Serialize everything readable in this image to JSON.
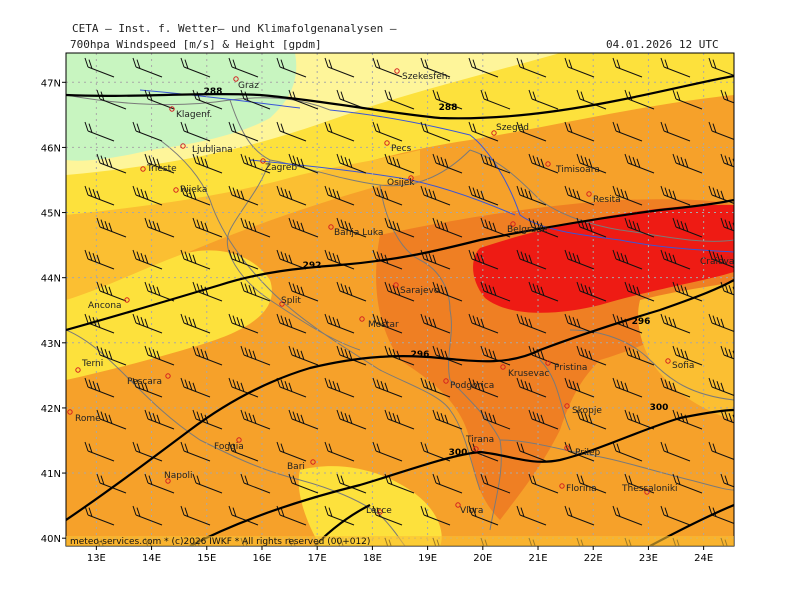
{
  "header": {
    "institute": "CETA – Inst. f. Wetter– und Klimafolgenanalysen –",
    "parameter": "700hpa Windspeed [m/s] & Height [gpdm]",
    "date": "04.01.2026 12 UTC"
  },
  "footer": {
    "credit": "meteo-services.com * (c)2026 IWKF * All rights reserved (00+012)"
  },
  "axes": {
    "lon_labels": [
      "13E",
      "14E",
      "15E",
      "16E",
      "17E",
      "18E",
      "19E",
      "20E",
      "21E",
      "22E",
      "23E",
      "24E"
    ],
    "lat_labels": [
      "47N",
      "46N",
      "45N",
      "44N",
      "43N",
      "42N",
      "41N",
      "40N"
    ]
  },
  "contour_labels": [
    "288",
    "288",
    "292",
    "296",
    "296",
    "300",
    "300"
  ],
  "cities": [
    {
      "name": "Graz"
    },
    {
      "name": "Szekesfeh."
    },
    {
      "name": "Klagenf."
    },
    {
      "name": "Szeged"
    },
    {
      "name": "Ljubljana"
    },
    {
      "name": "Pecs"
    },
    {
      "name": "Trieste"
    },
    {
      "name": "Zagreb"
    },
    {
      "name": "Osijek"
    },
    {
      "name": "Timisoara"
    },
    {
      "name": "Rijeka"
    },
    {
      "name": "Resita"
    },
    {
      "name": "Banja Luka"
    },
    {
      "name": "Belgrade"
    },
    {
      "name": "Craiova"
    },
    {
      "name": "Sarajevo"
    },
    {
      "name": "Ancona"
    },
    {
      "name": "Split"
    },
    {
      "name": "Mostar"
    },
    {
      "name": "Terni"
    },
    {
      "name": "Pristina"
    },
    {
      "name": "Sofia"
    },
    {
      "name": "Pescara"
    },
    {
      "name": "Podgorica"
    },
    {
      "name": "Krusevac"
    },
    {
      "name": "Rome"
    },
    {
      "name": "Skopje"
    },
    {
      "name": "Tirana"
    },
    {
      "name": "Foggia"
    },
    {
      "name": "Bari"
    },
    {
      "name": "Prilep"
    },
    {
      "name": "Napoli"
    },
    {
      "name": "Florina"
    },
    {
      "name": "Thessaloniki"
    },
    {
      "name": "Lecce"
    },
    {
      "name": "Vlora"
    }
  ],
  "colors": {
    "calm": "#c8f5c0",
    "pale": "#fef59a",
    "yellow": "#fde13c",
    "light_orange": "#fbbf32",
    "orange": "#f6a12a",
    "dark_orange": "#ef7f23",
    "red": "#ee1b14",
    "contour": "#000000",
    "border": "#7a7a7a",
    "river": "#3a56d8",
    "grid": "#a8a8a8",
    "city": "#d42020"
  },
  "legend_scale": "m/s"
}
